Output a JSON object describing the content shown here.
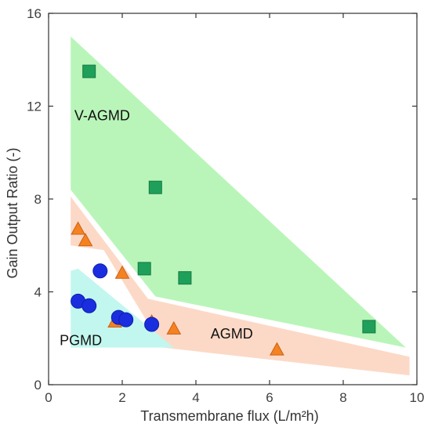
{
  "chart_data": {
    "type": "scatter",
    "xlabel": "Transmembrane flux (L/m²h)",
    "ylabel": "Gain Output Ratio (-)",
    "xlim": [
      0,
      10
    ],
    "ylim": [
      0,
      16
    ],
    "xticks": [
      0,
      2,
      4,
      6,
      8,
      10
    ],
    "yticks": [
      0,
      4,
      8,
      12,
      16
    ],
    "grid": false,
    "regions": [
      {
        "name": "V-AGMD",
        "color": "#b9f5b9",
        "polygon": [
          [
            0.6,
            15.0
          ],
          [
            0.6,
            8.4
          ],
          [
            2.9,
            3.8
          ],
          [
            9.7,
            1.6
          ]
        ]
      },
      {
        "name": "AGMD",
        "color": "#fcd9c6",
        "polygon": [
          [
            0.6,
            8.1
          ],
          [
            2.7,
            3.7
          ],
          [
            9.8,
            1.2
          ],
          [
            9.8,
            0.4
          ],
          [
            3.1,
            1.6
          ],
          [
            1.5,
            5.8
          ],
          [
            0.6,
            6.0
          ]
        ]
      },
      {
        "name": "PGMD",
        "color": "#c2f7ef",
        "polygon": [
          [
            0.6,
            4.9
          ],
          [
            0.8,
            5.0
          ],
          [
            3.4,
            1.6
          ],
          [
            0.6,
            1.6
          ]
        ]
      }
    ],
    "region_labels": [
      {
        "text": "V-AGMD",
        "x": 0.7,
        "y": 11.4
      },
      {
        "text": "AGMD",
        "x": 4.4,
        "y": 2.0
      },
      {
        "text": "PGMD",
        "x": 0.3,
        "y": 1.7
      }
    ],
    "series": [
      {
        "marker": "square",
        "color": "#1fa05a",
        "stroke": "#147a42",
        "points": [
          [
            1.1,
            13.5
          ],
          [
            2.9,
            8.5
          ],
          [
            2.6,
            5.0
          ],
          [
            3.7,
            4.6
          ],
          [
            8.7,
            2.5
          ]
        ]
      },
      {
        "marker": "triangle",
        "color": "#f58220",
        "stroke": "#c8621a",
        "points": [
          [
            0.8,
            6.7
          ],
          [
            1.0,
            6.2
          ],
          [
            2.0,
            4.8
          ],
          [
            1.8,
            2.7
          ],
          [
            2.8,
            2.7
          ],
          [
            3.4,
            2.4
          ],
          [
            6.2,
            1.5
          ]
        ]
      },
      {
        "marker": "circle",
        "color": "#1a2ee0",
        "stroke": "#0f1ea8",
        "points": [
          [
            1.4,
            4.9
          ],
          [
            0.8,
            3.6
          ],
          [
            1.1,
            3.4
          ],
          [
            1.9,
            2.9
          ],
          [
            2.1,
            2.8
          ],
          [
            2.8,
            2.6
          ]
        ]
      }
    ]
  }
}
